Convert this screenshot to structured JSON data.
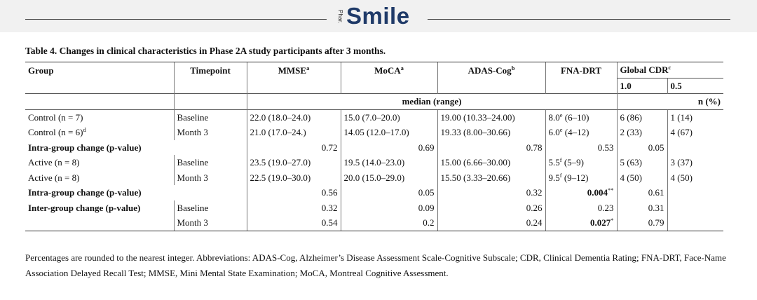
{
  "banner": {
    "publisher": "Phar.",
    "brand": "Smile"
  },
  "caption": "Table 4.  Changes in clinical characteristics in Phase 2A study participants after 3 months.",
  "headers": {
    "group": "Group",
    "timepoint": "Timepoint",
    "mmse": "MMSE",
    "mmse_sup": "a",
    "moca": "MoCA",
    "moca_sup": "a",
    "adas": "ADAS-Cog",
    "adas_sup": "b",
    "fna": "FNA-DRT",
    "cdr": "Global CDR",
    "cdr_sup": "c",
    "cdr_10": "1.0",
    "cdr_05": "0.5",
    "median": "median (range)",
    "npct": "n (%)"
  },
  "rows": {
    "c_base": {
      "group": "Control (n = 7)",
      "tp": "Baseline",
      "mmse": "22.0 (18.0–24.0)",
      "moca": "15.0 (7.0–20.0)",
      "adas": "19.00 (10.33–24.00)",
      "fna": "8.0",
      "fna_sup": "e",
      "fna_range": " (6–10)",
      "cdr10": "6 (86)",
      "cdr05": "1 (14)"
    },
    "c_m3": {
      "group": "Control (n = 6)",
      "group_sup": "d",
      "tp": "Month 3",
      "mmse": "21.0 (17.0–24.)",
      "moca": "14.05 (12.0–17.0)",
      "adas": "19.33 (8.00–30.66)",
      "fna": "6.0",
      "fna_sup": "e",
      "fna_range": " (4–12)",
      "cdr10": "2 (33)",
      "cdr05": "4 (67)"
    },
    "intra1": {
      "label": "Intra-group change (p-value)",
      "mmse": "0.72",
      "moca": "0.69",
      "adas": "0.78",
      "fna": "0.53",
      "cdr": "0.05"
    },
    "a_base": {
      "group": "Active (n = 8)",
      "tp": "Baseline",
      "mmse": "23.5 (19.0–27.0)",
      "moca": "19.5 (14.0–23.0)",
      "adas": "15.00 (6.66–30.00)",
      "fna": "5.5",
      "fna_sup": "f",
      "fna_range": " (5–9)",
      "cdr10": "5 (63)",
      "cdr05": "3 (37)"
    },
    "a_m3": {
      "group": "Active (n = 8)",
      "tp": "Month 3",
      "mmse": "22.5 (19.0–30.0)",
      "moca": "20.0 (15.0–29.0)",
      "adas": "15.50 (3.33–20.66)",
      "fna": "9.5",
      "fna_sup": "f",
      "fna_range": " (9–12)",
      "cdr10": "4 (50)",
      "cdr05": "4 (50)"
    },
    "intra2": {
      "label": "Intra-group change (p-value)",
      "mmse": "0.56",
      "moca": "0.05",
      "adas": "0.32",
      "fna": "0.004",
      "fna_sup": "**",
      "cdr": "0.61"
    },
    "inter_base": {
      "label": "Inter-group change (p-value)",
      "tp": "Baseline",
      "mmse": "0.32",
      "moca": "0.09",
      "adas": "0.26",
      "fna": "0.23",
      "cdr": "0.31"
    },
    "inter_m3": {
      "tp": "Month 3",
      "mmse": "0.54",
      "moca": "0.2",
      "adas": "0.24",
      "fna": "0.027",
      "fna_sup": "*",
      "cdr": "0.79"
    }
  },
  "footnote": "Percentages are rounded to the nearest integer. Abbreviations: ADAS-Cog, Alzheimer’s Disease Assessment Scale-Cognitive Subscale; CDR, Clinical Dementia Rating; FNA-DRT, Face-Name Association Delayed Recall Test; MMSE, Mini Mental State Examination; MoCA, Montreal Cognitive Assessment."
}
